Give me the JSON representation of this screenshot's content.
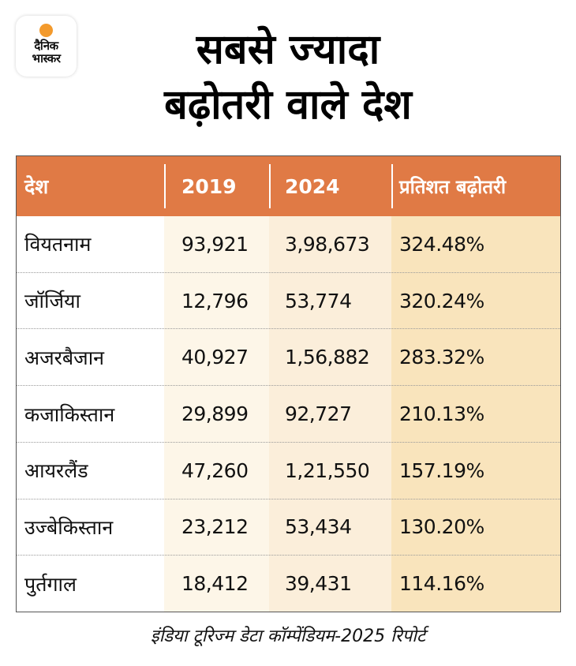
{
  "logo": {
    "line1": "दैनिक",
    "line2": "भास्कर",
    "sun_color": "#F39A2C"
  },
  "title": {
    "line1": "सबसे ज्यादा",
    "line2": "बढ़ोतरी वाले देश"
  },
  "table": {
    "header_color": "#E07A45",
    "headers": [
      "देश",
      "2019",
      "2024",
      "प्रतिशत बढ़ोतरी"
    ],
    "rows": [
      {
        "country": "वियतनाम",
        "y2019": "93,921",
        "y2024": "3,98,673",
        "pct": "324.48%"
      },
      {
        "country": "जॉर्जिया",
        "y2019": "12,796",
        "y2024": "53,774",
        "pct": "320.24%"
      },
      {
        "country": "अजरबैजान",
        "y2019": "40,927",
        "y2024": "1,56,882",
        "pct": "283.32%"
      },
      {
        "country": "कजाकिस्तान",
        "y2019": "29,899",
        "y2024": "92,727",
        "pct": "210.13%"
      },
      {
        "country": "आयरलैंड",
        "y2019": "47,260",
        "y2024": "1,21,550",
        "pct": "157.19%"
      },
      {
        "country": "उज्बेकिस्तान",
        "y2019": "23,212",
        "y2024": "53,434",
        "pct": "130.20%"
      },
      {
        "country": "पुर्तगाल",
        "y2019": "18,412",
        "y2024": "39,431",
        "pct": "114.16%"
      }
    ]
  },
  "footer": {
    "source": "इंडिया टूरिज्म डेटा कॉम्पेंडियम-2025 रिपोर्ट"
  }
}
